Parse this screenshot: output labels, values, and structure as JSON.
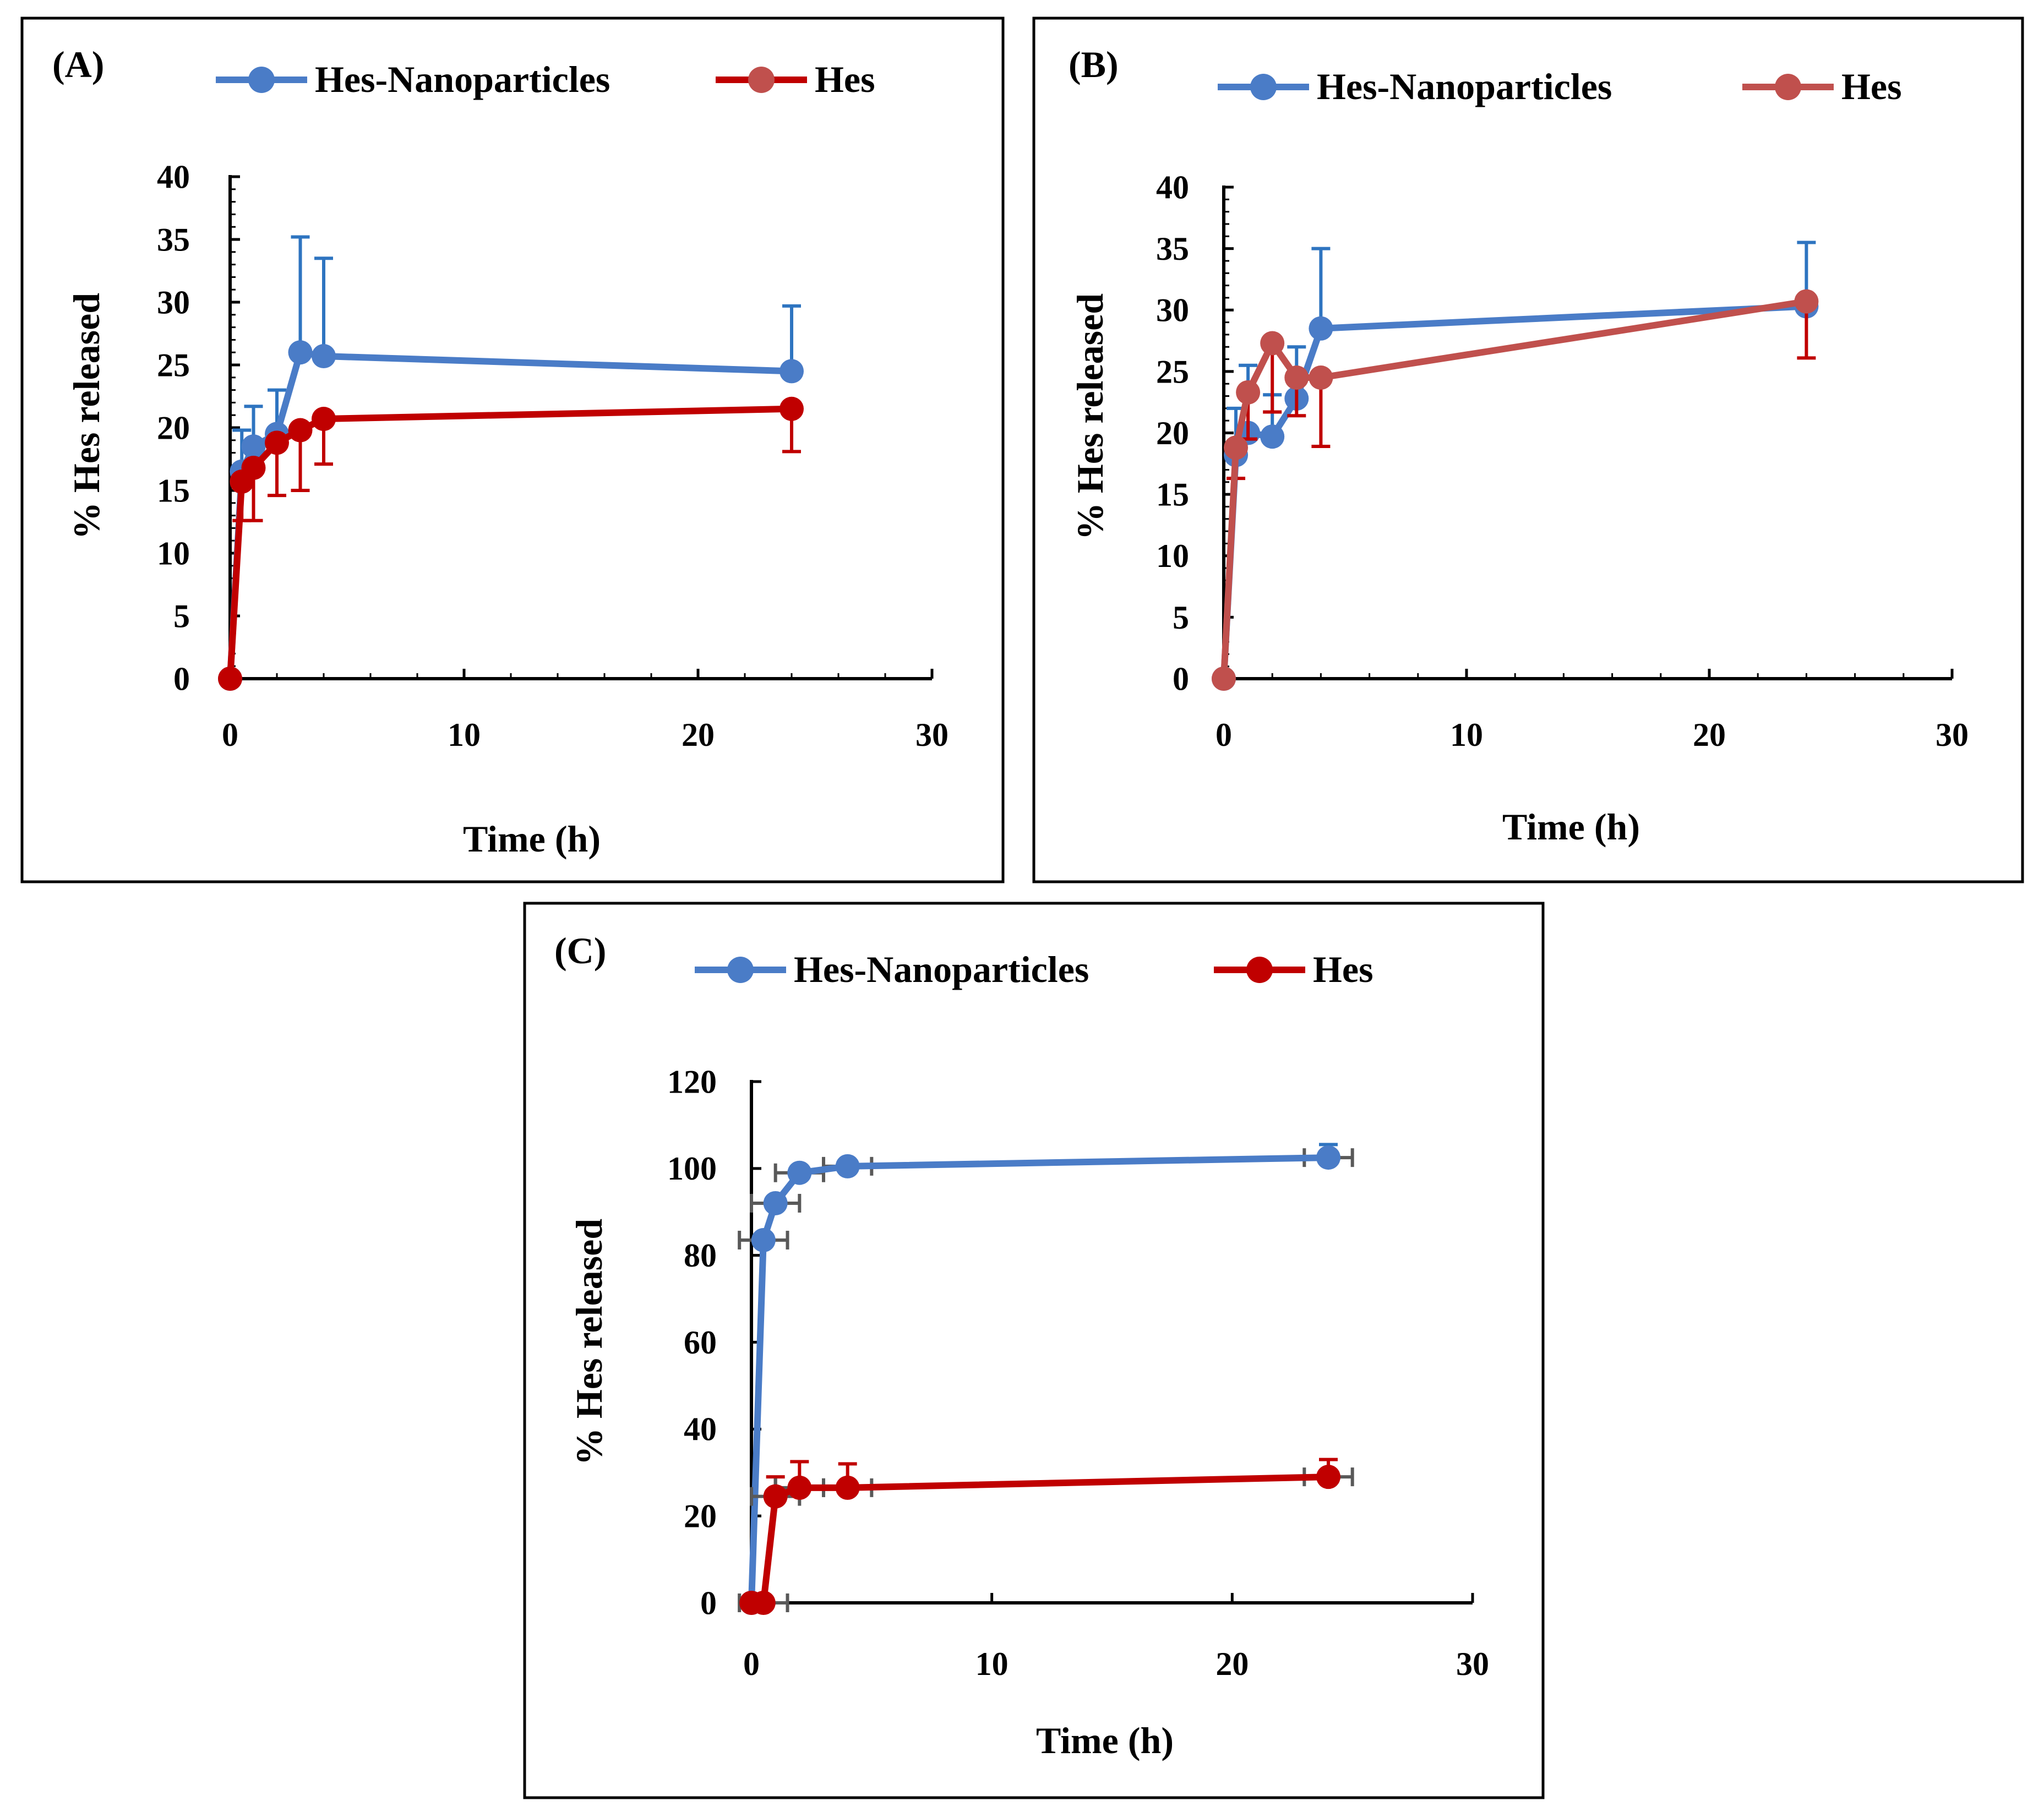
{
  "colors": {
    "blue": "#4a7cc7",
    "blue_err": "#2e74c0",
    "red_a": "#c00000",
    "red_b": "#c0504d",
    "grey_err": "#595959",
    "axis": "#000000"
  },
  "chart_data": [
    {
      "type": "line",
      "panel_label": "(A)",
      "xlabel": "Time (h)",
      "ylabel": "% Hes released",
      "xlim": [
        0,
        30
      ],
      "ylim": [
        0,
        40
      ],
      "xticks": [
        0,
        10,
        20,
        30
      ],
      "yticks": [
        0,
        5,
        10,
        15,
        20,
        25,
        30,
        35,
        40
      ],
      "x_tick_labels": [
        "0",
        "10",
        "20",
        "30"
      ],
      "y_tick_labels": [
        "0",
        "5",
        "10",
        "15",
        "20",
        "25",
        "30",
        "35",
        "40"
      ],
      "legend": [
        "Hes-Nanoparticles",
        "Hes"
      ],
      "series": [
        {
          "name": "Hes-Nanoparticles",
          "color": "#4a7cc7",
          "error_color": "#2e74c0",
          "x": [
            0,
            0.5,
            1,
            2,
            3,
            4,
            24
          ],
          "y": [
            0,
            16.5,
            18.5,
            19.5,
            26,
            25.7,
            24.5
          ],
          "y_err_plus": [
            0,
            3.3,
            3.2,
            3.5,
            9.2,
            7.8,
            5.2
          ],
          "y_err_minus": [
            0,
            0,
            0,
            0,
            0,
            0,
            0
          ]
        },
        {
          "name": "Hes",
          "color": "#c00000",
          "error_color": "#c00000",
          "x": [
            0,
            0.5,
            1,
            2,
            3,
            4,
            24
          ],
          "y": [
            0,
            15.7,
            16.8,
            18.8,
            19.8,
            20.7,
            21.5
          ],
          "y_err_plus": [
            0,
            0,
            0,
            0,
            0,
            0,
            0
          ],
          "y_err_minus": [
            0,
            3.1,
            4.2,
            4.2,
            4.8,
            3.6,
            3.4
          ]
        }
      ]
    },
    {
      "type": "line",
      "panel_label": "(B)",
      "xlabel": "Time (h)",
      "ylabel": "% Hes released",
      "xlim": [
        0,
        30
      ],
      "ylim": [
        0,
        40
      ],
      "xticks": [
        0,
        10,
        20,
        30
      ],
      "yticks": [
        0,
        5,
        10,
        15,
        20,
        25,
        30,
        35,
        40
      ],
      "x_tick_labels": [
        "0",
        "10",
        "20",
        "30"
      ],
      "y_tick_labels": [
        "0",
        "5",
        "10",
        "15",
        "20",
        "25",
        "30",
        "35",
        "40"
      ],
      "legend": [
        "Hes-Nanoparticles",
        "Hes"
      ],
      "series": [
        {
          "name": "Hes-Nanoparticles",
          "color": "#4a7cc7",
          "error_color": "#2e74c0",
          "x": [
            0,
            0.5,
            1,
            2,
            3,
            4,
            24
          ],
          "y": [
            0,
            18.2,
            20,
            19.7,
            22.8,
            28.5,
            30.3
          ],
          "y_err_plus": [
            0,
            3.8,
            5.5,
            3.4,
            4.2,
            6.5,
            5.2
          ],
          "y_err_minus": [
            0,
            0,
            0,
            0,
            0,
            0,
            0
          ]
        },
        {
          "name": "Hes",
          "color": "#c0504d",
          "error_color": "#c00000",
          "x": [
            0,
            0.5,
            1,
            2,
            3,
            4,
            24
          ],
          "y": [
            0,
            18.8,
            23.3,
            27.3,
            24.5,
            24.5,
            30.7
          ],
          "y_err_plus": [
            0,
            0,
            0,
            0,
            0,
            0,
            0
          ],
          "y_err_minus": [
            0,
            2.5,
            3.8,
            5.6,
            3.1,
            5.6,
            4.6
          ]
        }
      ]
    },
    {
      "type": "line",
      "panel_label": "(C)",
      "xlabel": "Time (h)",
      "ylabel": "% Hes released",
      "xlim": [
        0,
        30
      ],
      "ylim": [
        0,
        120
      ],
      "xticks": [
        0,
        10,
        20,
        30
      ],
      "yticks": [
        0,
        20,
        40,
        60,
        80,
        100,
        120
      ],
      "x_tick_labels": [
        "0",
        "10",
        "20",
        "30"
      ],
      "y_tick_labels": [
        "0",
        "20",
        "40",
        "60",
        "80",
        "100",
        "120"
      ],
      "legend": [
        "Hes-Nanoparticles",
        "Hes"
      ],
      "series": [
        {
          "name": "Hes-Nanoparticles",
          "color": "#4a7cc7",
          "error_color": "#2e74c0",
          "x": [
            0,
            0.5,
            1,
            2,
            4,
            24
          ],
          "y": [
            0,
            83.5,
            92,
            99,
            100.5,
            102.5
          ],
          "y_err_plus": [
            0,
            0,
            0,
            0,
            0,
            3
          ],
          "y_err_minus": [
            0,
            0,
            0,
            0,
            0,
            0
          ],
          "x_err": [
            0,
            1,
            1,
            1,
            1,
            1
          ]
        },
        {
          "name": "Hes",
          "color": "#c00000",
          "error_color": "#c00000",
          "x": [
            0,
            0.5,
            1,
            2,
            4,
            24
          ],
          "y": [
            0,
            0,
            24.5,
            26.5,
            26.5,
            29
          ],
          "y_err_plus": [
            0,
            0,
            4.5,
            6,
            5.5,
            4
          ],
          "y_err_minus": [
            0,
            0,
            0,
            0,
            0,
            0
          ],
          "x_err": [
            0,
            1,
            1,
            1,
            1,
            1
          ]
        }
      ]
    }
  ]
}
